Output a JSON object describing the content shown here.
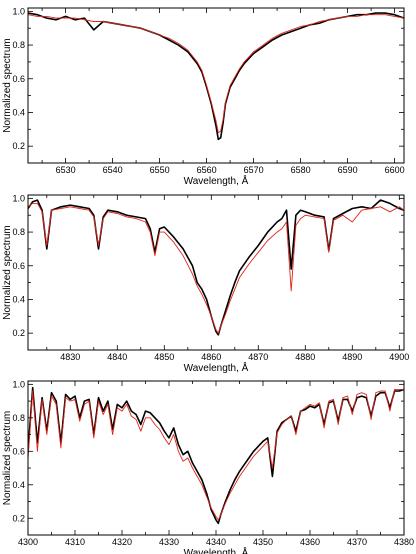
{
  "chart_data": [
    {
      "type": "line",
      "xlabel": "Wavelength, Å",
      "ylabel": "Normalized spectrum",
      "xlim": [
        6522,
        6602
      ],
      "ylim": [
        0.1,
        1.02
      ],
      "xticks": [
        6530,
        6540,
        6550,
        6560,
        6570,
        6580,
        6590,
        6600
      ],
      "yticks": [
        0.2,
        0.4,
        0.6,
        0.8,
        1.0
      ],
      "ytick_labels": [
        "0.2",
        "0.4",
        "0.6",
        "0.8",
        "1.0"
      ],
      "line_center": 6562.8,
      "colors": {
        "observed": "#000000",
        "model": "#e0251b"
      },
      "series": [
        {
          "role": "observed",
          "x": [
            6522,
            6524,
            6526,
            6528,
            6530,
            6532,
            6534,
            6536,
            6538,
            6540,
            6542,
            6544,
            6546,
            6548,
            6550,
            6552,
            6554,
            6556,
            6558,
            6559,
            6560,
            6561,
            6562,
            6562.5,
            6563,
            6563.5,
            6564,
            6565,
            6566,
            6567,
            6568,
            6570,
            6572,
            6574,
            6576,
            6578,
            6580,
            6582,
            6584,
            6586,
            6588,
            6590,
            6592,
            6594,
            6596,
            6598,
            6600,
            6602
          ],
          "values": [
            0.99,
            0.98,
            0.96,
            0.95,
            0.97,
            0.95,
            0.96,
            0.89,
            0.94,
            0.93,
            0.92,
            0.91,
            0.9,
            0.88,
            0.86,
            0.83,
            0.8,
            0.76,
            0.69,
            0.64,
            0.55,
            0.45,
            0.32,
            0.24,
            0.25,
            0.34,
            0.45,
            0.55,
            0.6,
            0.65,
            0.69,
            0.75,
            0.79,
            0.83,
            0.86,
            0.88,
            0.9,
            0.92,
            0.93,
            0.95,
            0.96,
            0.97,
            0.98,
            0.98,
            0.99,
            0.99,
            0.98,
            0.96
          ]
        },
        {
          "role": "model",
          "x": [
            6522,
            6524,
            6526,
            6528,
            6530,
            6532,
            6534,
            6536,
            6538,
            6540,
            6542,
            6544,
            6546,
            6548,
            6550,
            6552,
            6554,
            6556,
            6558,
            6559,
            6560,
            6561,
            6562,
            6562.5,
            6563,
            6563.5,
            6564,
            6565,
            6566,
            6567,
            6568,
            6570,
            6572,
            6574,
            6576,
            6578,
            6580,
            6582,
            6584,
            6586,
            6588,
            6590,
            6592,
            6594,
            6596,
            6598,
            6600,
            6602
          ],
          "values": [
            0.98,
            0.97,
            0.97,
            0.96,
            0.96,
            0.96,
            0.95,
            0.94,
            0.94,
            0.93,
            0.92,
            0.91,
            0.9,
            0.88,
            0.86,
            0.84,
            0.81,
            0.77,
            0.7,
            0.65,
            0.56,
            0.46,
            0.35,
            0.28,
            0.29,
            0.36,
            0.46,
            0.56,
            0.61,
            0.66,
            0.7,
            0.76,
            0.8,
            0.84,
            0.87,
            0.89,
            0.91,
            0.92,
            0.94,
            0.95,
            0.96,
            0.97,
            0.97,
            0.98,
            0.98,
            0.98,
            0.97,
            0.96
          ]
        }
      ]
    },
    {
      "type": "line",
      "xlabel": "Wavelength, Å",
      "ylabel": "Normalized spectrum",
      "xlim": [
        4821,
        4901
      ],
      "ylim": [
        0.1,
        1.02
      ],
      "xticks": [
        4830,
        4840,
        4850,
        4860,
        4870,
        4880,
        4890,
        4900
      ],
      "yticks": [
        0.2,
        0.4,
        0.6,
        0.8,
        1.0
      ],
      "ytick_labels": [
        "0.2",
        "0.4",
        "0.6",
        "0.8",
        "1.0"
      ],
      "line_center": 4861.3,
      "colors": {
        "observed": "#000000",
        "model": "#e0251b"
      },
      "series": [
        {
          "role": "observed",
          "x": [
            4821,
            4822,
            4823,
            4824,
            4825,
            4826,
            4828,
            4830,
            4832,
            4834,
            4835,
            4836,
            4837,
            4838,
            4840,
            4842,
            4844,
            4846,
            4847,
            4848,
            4849,
            4850,
            4852,
            4854,
            4856,
            4857,
            4858,
            4859,
            4860,
            4861,
            4861.5,
            4862,
            4863,
            4864,
            4865,
            4866,
            4868,
            4870,
            4872,
            4874,
            4875,
            4876,
            4877,
            4878,
            4879,
            4880,
            4882,
            4884,
            4885,
            4886,
            4888,
            4890,
            4892,
            4894,
            4896,
            4898,
            4900,
            4901
          ],
          "values": [
            0.94,
            0.98,
            0.99,
            0.93,
            0.7,
            0.93,
            0.95,
            0.96,
            0.95,
            0.94,
            0.9,
            0.7,
            0.89,
            0.93,
            0.92,
            0.9,
            0.89,
            0.88,
            0.82,
            0.68,
            0.82,
            0.83,
            0.77,
            0.7,
            0.6,
            0.5,
            0.46,
            0.4,
            0.3,
            0.21,
            0.19,
            0.24,
            0.33,
            0.42,
            0.5,
            0.57,
            0.65,
            0.72,
            0.8,
            0.86,
            0.88,
            0.93,
            0.58,
            0.9,
            0.93,
            0.92,
            0.9,
            0.89,
            0.69,
            0.88,
            0.91,
            0.94,
            0.95,
            0.94,
            0.99,
            0.97,
            0.94,
            0.93
          ]
        },
        {
          "role": "model",
          "x": [
            4821,
            4822,
            4823,
            4824,
            4825,
            4826,
            4828,
            4830,
            4832,
            4834,
            4835,
            4836,
            4837,
            4838,
            4840,
            4842,
            4844,
            4846,
            4847,
            4848,
            4849,
            4850,
            4852,
            4854,
            4856,
            4857,
            4858,
            4859,
            4860,
            4861,
            4861.5,
            4862,
            4863,
            4864,
            4865,
            4866,
            4868,
            4870,
            4872,
            4874,
            4875,
            4876,
            4877,
            4878,
            4879,
            4880,
            4882,
            4884,
            4885,
            4886,
            4888,
            4890,
            4892,
            4894,
            4896,
            4898,
            4900,
            4901
          ],
          "values": [
            0.95,
            0.97,
            0.97,
            0.92,
            0.72,
            0.93,
            0.94,
            0.95,
            0.94,
            0.93,
            0.89,
            0.72,
            0.88,
            0.92,
            0.91,
            0.89,
            0.88,
            0.86,
            0.8,
            0.66,
            0.8,
            0.8,
            0.74,
            0.66,
            0.55,
            0.48,
            0.43,
            0.37,
            0.3,
            0.22,
            0.2,
            0.24,
            0.31,
            0.39,
            0.46,
            0.53,
            0.61,
            0.68,
            0.75,
            0.8,
            0.82,
            0.86,
            0.45,
            0.84,
            0.88,
            0.9,
            0.89,
            0.88,
            0.68,
            0.87,
            0.9,
            0.86,
            0.93,
            0.94,
            0.95,
            0.92,
            0.95,
            0.93
          ]
        }
      ]
    },
    {
      "type": "line",
      "xlabel": "Wavelength, Å",
      "ylabel": "Normalized spectrum",
      "xlim": [
        4300,
        4380
      ],
      "ylim": [
        0.1,
        1.02
      ],
      "xticks": [
        4300,
        4310,
        4320,
        4330,
        4340,
        4350,
        4360,
        4370,
        4380
      ],
      "yticks": [
        0.2,
        0.4,
        0.6,
        0.8,
        1.0
      ],
      "ytick_labels": [
        "0.2",
        "0.4",
        "0.6",
        "0.8",
        "1.0"
      ],
      "line_center": 4340.5,
      "colors": {
        "observed": "#000000",
        "model": "#e0251b"
      },
      "series": [
        {
          "role": "observed",
          "x": [
            4300,
            4301,
            4302,
            4303,
            4304,
            4305,
            4306,
            4307,
            4308,
            4309,
            4310,
            4311,
            4312,
            4313,
            4314,
            4315,
            4316,
            4317,
            4318,
            4319,
            4320,
            4321,
            4322,
            4323,
            4324,
            4325,
            4326,
            4327,
            4328,
            4329,
            4330,
            4331,
            4332,
            4333,
            4334,
            4335,
            4336,
            4337,
            4338,
            4339,
            4340,
            4340.5,
            4341,
            4342,
            4343,
            4344,
            4345,
            4346,
            4347,
            4348,
            4349,
            4350,
            4351,
            4352,
            4353,
            4354,
            4355,
            4356,
            4357,
            4358,
            4359,
            4360,
            4361,
            4362,
            4363,
            4364,
            4365,
            4366,
            4367,
            4368,
            4369,
            4370,
            4371,
            4372,
            4373,
            4374,
            4375,
            4376,
            4377,
            4378,
            4379,
            4380
          ],
          "values": [
            0.6,
            0.98,
            0.65,
            0.92,
            0.72,
            0.95,
            0.9,
            0.65,
            0.94,
            0.91,
            0.93,
            0.8,
            0.9,
            0.91,
            0.7,
            0.92,
            0.84,
            0.9,
            0.73,
            0.88,
            0.86,
            0.9,
            0.84,
            0.82,
            0.76,
            0.84,
            0.83,
            0.8,
            0.77,
            0.72,
            0.68,
            0.74,
            0.64,
            0.58,
            0.6,
            0.53,
            0.48,
            0.43,
            0.35,
            0.25,
            0.19,
            0.17,
            0.22,
            0.3,
            0.37,
            0.43,
            0.48,
            0.52,
            0.56,
            0.6,
            0.63,
            0.66,
            0.68,
            0.45,
            0.72,
            0.77,
            0.79,
            0.81,
            0.72,
            0.84,
            0.85,
            0.87,
            0.86,
            0.88,
            0.76,
            0.89,
            0.9,
            0.78,
            0.91,
            0.91,
            0.84,
            0.92,
            0.93,
            0.92,
            0.81,
            0.93,
            0.95,
            0.95,
            0.86,
            0.96,
            0.96,
            0.97
          ]
        },
        {
          "role": "model",
          "x": [
            4300,
            4301,
            4302,
            4303,
            4304,
            4305,
            4306,
            4307,
            4308,
            4309,
            4310,
            4311,
            4312,
            4313,
            4314,
            4315,
            4316,
            4317,
            4318,
            4319,
            4320,
            4321,
            4322,
            4323,
            4324,
            4325,
            4326,
            4327,
            4328,
            4329,
            4330,
            4331,
            4332,
            4333,
            4334,
            4335,
            4336,
            4337,
            4338,
            4339,
            4340,
            4340.5,
            4341,
            4342,
            4343,
            4344,
            4345,
            4346,
            4347,
            4348,
            4349,
            4350,
            4351,
            4352,
            4353,
            4354,
            4355,
            4356,
            4357,
            4358,
            4359,
            4360,
            4361,
            4362,
            4363,
            4364,
            4365,
            4366,
            4367,
            4368,
            4369,
            4370,
            4371,
            4372,
            4373,
            4374,
            4375,
            4376,
            4377,
            4378,
            4379,
            4380
          ],
          "values": [
            0.55,
            0.96,
            0.6,
            0.91,
            0.7,
            0.93,
            0.88,
            0.62,
            0.92,
            0.9,
            0.91,
            0.78,
            0.88,
            0.9,
            0.68,
            0.9,
            0.82,
            0.88,
            0.7,
            0.86,
            0.84,
            0.88,
            0.81,
            0.79,
            0.72,
            0.8,
            0.8,
            0.76,
            0.73,
            0.68,
            0.64,
            0.7,
            0.6,
            0.54,
            0.56,
            0.5,
            0.45,
            0.4,
            0.33,
            0.26,
            0.21,
            0.19,
            0.22,
            0.29,
            0.35,
            0.4,
            0.45,
            0.49,
            0.53,
            0.57,
            0.6,
            0.63,
            0.66,
            0.5,
            0.71,
            0.76,
            0.79,
            0.81,
            0.7,
            0.84,
            0.86,
            0.88,
            0.87,
            0.89,
            0.74,
            0.9,
            0.91,
            0.76,
            0.92,
            0.93,
            0.82,
            0.94,
            0.95,
            0.94,
            0.79,
            0.95,
            0.96,
            0.96,
            0.84,
            0.97,
            0.97,
            0.97
          ]
        }
      ]
    }
  ]
}
